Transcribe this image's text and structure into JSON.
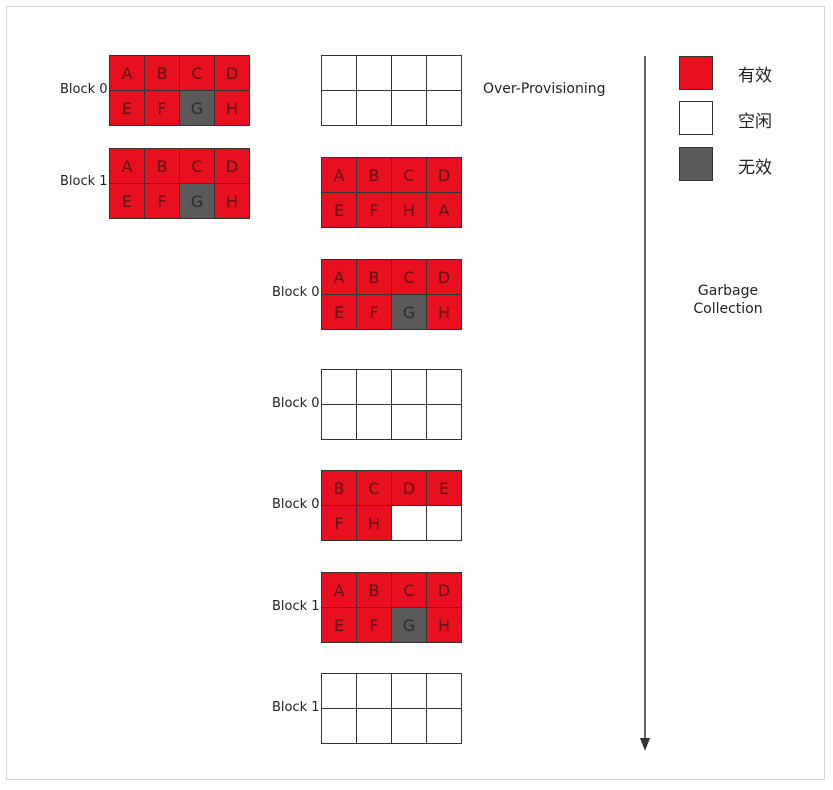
{
  "colors": {
    "valid": "#e8101e",
    "free": "#ffffff",
    "invalid": "#5a5a5a",
    "border": "#333333"
  },
  "over_provisioning_label": "Over-Provisioning",
  "garbage_collection_label": [
    "Garbage",
    "Collection"
  ],
  "legend": [
    {
      "label": "有效",
      "state": "valid"
    },
    {
      "label": "空闲",
      "state": "free"
    },
    {
      "label": "无效",
      "state": "invalid"
    }
  ],
  "grids": [
    {
      "label": "Block 0",
      "cells": [
        [
          "A",
          "valid"
        ],
        [
          "B",
          "valid"
        ],
        [
          "C",
          "valid"
        ],
        [
          "D",
          "valid"
        ],
        [
          "E",
          "valid"
        ],
        [
          "F",
          "valid"
        ],
        [
          "G",
          "invalid"
        ],
        [
          "H",
          "valid"
        ]
      ]
    },
    {
      "label": "Block 1",
      "cells": [
        [
          "A",
          "valid"
        ],
        [
          "B",
          "valid"
        ],
        [
          "C",
          "valid"
        ],
        [
          "D",
          "valid"
        ],
        [
          "E",
          "valid"
        ],
        [
          "F",
          "valid"
        ],
        [
          "G",
          "invalid"
        ],
        [
          "H",
          "valid"
        ]
      ]
    },
    {
      "label": "",
      "cells": [
        [
          "",
          "free"
        ],
        [
          "",
          "free"
        ],
        [
          "",
          "free"
        ],
        [
          "",
          "free"
        ],
        [
          "",
          "free"
        ],
        [
          "",
          "free"
        ],
        [
          "",
          "free"
        ],
        [
          "",
          "free"
        ]
      ]
    },
    {
      "label": "",
      "cells": [
        [
          "A",
          "valid"
        ],
        [
          "B",
          "valid"
        ],
        [
          "C",
          "valid"
        ],
        [
          "D",
          "valid"
        ],
        [
          "E",
          "valid"
        ],
        [
          "F",
          "valid"
        ],
        [
          "H",
          "valid"
        ],
        [
          "A",
          "valid"
        ]
      ]
    },
    {
      "label": "Block 0",
      "cells": [
        [
          "A",
          "valid"
        ],
        [
          "B",
          "valid"
        ],
        [
          "C",
          "valid"
        ],
        [
          "D",
          "valid"
        ],
        [
          "E",
          "valid"
        ],
        [
          "F",
          "valid"
        ],
        [
          "G",
          "invalid"
        ],
        [
          "H",
          "valid"
        ]
      ]
    },
    {
      "label": "Block 0",
      "cells": [
        [
          "",
          "free"
        ],
        [
          "",
          "free"
        ],
        [
          "",
          "free"
        ],
        [
          "",
          "free"
        ],
        [
          "",
          "free"
        ],
        [
          "",
          "free"
        ],
        [
          "",
          "free"
        ],
        [
          "",
          "free"
        ]
      ]
    },
    {
      "label": "Block 0",
      "cells": [
        [
          "B",
          "valid"
        ],
        [
          "C",
          "valid"
        ],
        [
          "D",
          "valid"
        ],
        [
          "E",
          "valid"
        ],
        [
          "F",
          "valid"
        ],
        [
          "H",
          "valid"
        ],
        [
          "",
          "free"
        ],
        [
          "",
          "free"
        ]
      ]
    },
    {
      "label": "Block 1",
      "cells": [
        [
          "A",
          "valid"
        ],
        [
          "B",
          "valid"
        ],
        [
          "C",
          "valid"
        ],
        [
          "D",
          "valid"
        ],
        [
          "E",
          "valid"
        ],
        [
          "F",
          "valid"
        ],
        [
          "G",
          "invalid"
        ],
        [
          "H",
          "valid"
        ]
      ]
    },
    {
      "label": "Block 1",
      "cells": [
        [
          "",
          "free"
        ],
        [
          "",
          "free"
        ],
        [
          "",
          "free"
        ],
        [
          "",
          "free"
        ],
        [
          "",
          "free"
        ],
        [
          "",
          "free"
        ],
        [
          "",
          "free"
        ],
        [
          "",
          "free"
        ]
      ]
    }
  ]
}
